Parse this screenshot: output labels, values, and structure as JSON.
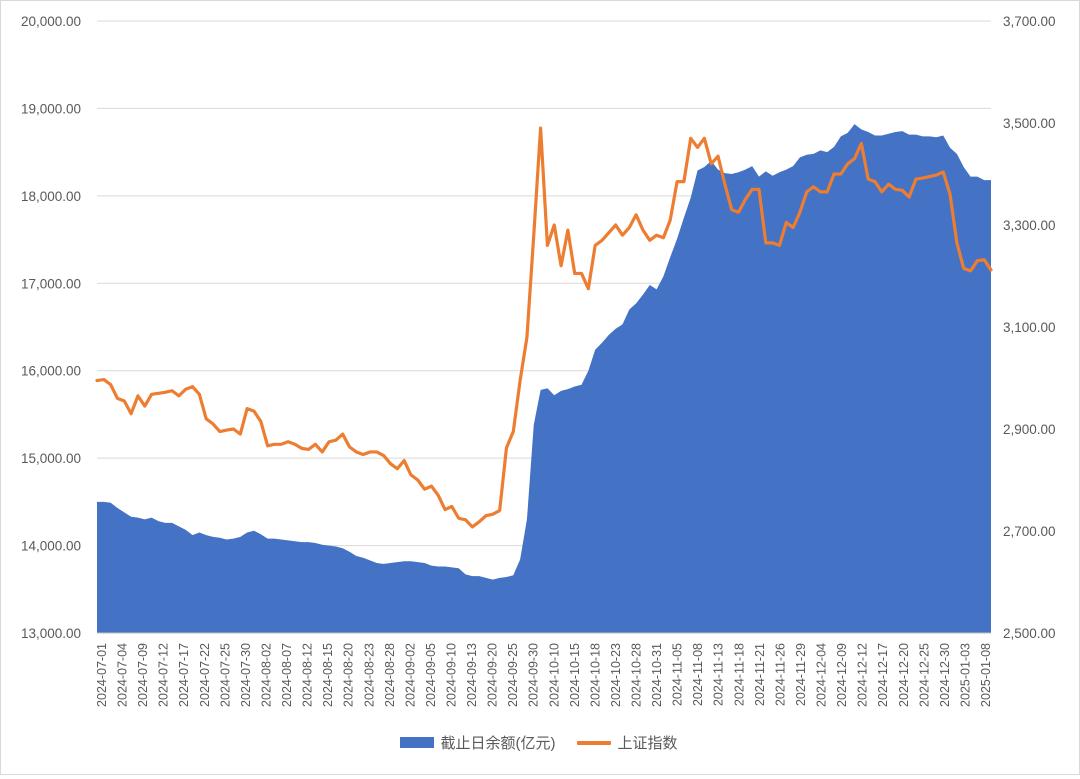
{
  "chart_data": {
    "type": "area+line",
    "left_axis": {
      "ticks": [
        "13,000.00",
        "14,000.00",
        "15,000.00",
        "16,000.00",
        "17,000.00",
        "18,000.00",
        "19,000.00",
        "20,000.00"
      ],
      "min": 13000,
      "max": 20000
    },
    "right_axis": {
      "ticks": [
        "2,500.00",
        "2,700.00",
        "2,900.00",
        "3,100.00",
        "3,300.00",
        "3,500.00",
        "3,700.00"
      ],
      "min": 2500,
      "max": 3700
    },
    "x_tick_labels": [
      "2024-07-01",
      "2024-07-04",
      "2024-07-09",
      "2024-07-12",
      "2024-07-17",
      "2024-07-22",
      "2024-07-25",
      "2024-07-30",
      "2024-08-02",
      "2024-08-07",
      "2024-08-12",
      "2024-08-15",
      "2024-08-20",
      "2024-08-23",
      "2024-08-28",
      "2024-09-02",
      "2024-09-05",
      "2024-09-10",
      "2024-09-13",
      "2024-09-20",
      "2024-09-25",
      "2024-09-30",
      "2024-10-10",
      "2024-10-15",
      "2024-10-18",
      "2024-10-23",
      "2024-10-28",
      "2024-10-31",
      "2024-11-05",
      "2024-11-08",
      "2024-11-13",
      "2024-11-18",
      "2024-11-21",
      "2024-11-26",
      "2024-11-29",
      "2024-12-04",
      "2024-12-09",
      "2024-12-12",
      "2024-12-17",
      "2024-12-20",
      "2024-12-25",
      "2024-12-30",
      "2025-01-03",
      "2025-01-08"
    ],
    "grid": "horizontal",
    "legend_position": "bottom",
    "series": [
      {
        "name": "截止日余额(亿元)",
        "type": "area",
        "axis": "left",
        "color": "#4472c4",
        "values": [
          14500,
          14500,
          14490,
          14430,
          14380,
          14330,
          14320,
          14300,
          14320,
          14280,
          14260,
          14260,
          14220,
          14180,
          14120,
          14150,
          14120,
          14100,
          14090,
          14070,
          14080,
          14100,
          14150,
          14170,
          14130,
          14080,
          14080,
          14070,
          14060,
          14050,
          14040,
          14040,
          14030,
          14010,
          14000,
          13990,
          13970,
          13930,
          13880,
          13860,
          13830,
          13800,
          13790,
          13800,
          13810,
          13820,
          13820,
          13810,
          13800,
          13770,
          13760,
          13760,
          13750,
          13740,
          13670,
          13650,
          13650,
          13630,
          13610,
          13630,
          13640,
          13660,
          13840,
          14300,
          15380,
          15780,
          15800,
          15720,
          15770,
          15790,
          15820,
          15840,
          16000,
          16240,
          16320,
          16410,
          16480,
          16530,
          16700,
          16770,
          16870,
          16980,
          16930,
          17080,
          17300,
          17510,
          17750,
          17980,
          18290,
          18330,
          18400,
          18300,
          18260,
          18250,
          18270,
          18300,
          18340,
          18220,
          18280,
          18230,
          18270,
          18300,
          18340,
          18440,
          18470,
          18480,
          18520,
          18500,
          18560,
          18680,
          18720,
          18820,
          18760,
          18730,
          18690,
          18690,
          18710,
          18730,
          18740,
          18700,
          18700,
          18680,
          18680,
          18670,
          18690,
          18550,
          18480,
          18330,
          18220,
          18220,
          18180,
          18180
        ]
      },
      {
        "name": "上证指数",
        "type": "line",
        "axis": "right",
        "color": "#ed7d31",
        "values": [
          2995,
          2997,
          2987,
          2960,
          2955,
          2930,
          2965,
          2945,
          2968,
          2970,
          2972,
          2975,
          2965,
          2978,
          2983,
          2968,
          2920,
          2910,
          2895,
          2898,
          2900,
          2890,
          2940,
          2935,
          2915,
          2867,
          2870,
          2870,
          2875,
          2870,
          2862,
          2860,
          2870,
          2855,
          2875,
          2878,
          2890,
          2865,
          2855,
          2850,
          2855,
          2855,
          2848,
          2832,
          2822,
          2838,
          2810,
          2800,
          2782,
          2788,
          2770,
          2742,
          2748,
          2725,
          2722,
          2708,
          2718,
          2730,
          2733,
          2740,
          2863,
          2895,
          2995,
          3080,
          3280,
          3490,
          3260,
          3300,
          3220,
          3290,
          3205,
          3205,
          3175,
          3260,
          3270,
          3285,
          3300,
          3280,
          3295,
          3320,
          3290,
          3270,
          3280,
          3275,
          3310,
          3385,
          3385,
          3470,
          3452,
          3470,
          3420,
          3435,
          3380,
          3330,
          3325,
          3350,
          3370,
          3370,
          3265,
          3265,
          3260,
          3305,
          3295,
          3325,
          3365,
          3375,
          3365,
          3365,
          3400,
          3400,
          3420,
          3430,
          3460,
          3390,
          3385,
          3365,
          3380,
          3370,
          3368,
          3355,
          3390,
          3392,
          3395,
          3398,
          3404,
          3360,
          3265,
          3215,
          3210,
          3230,
          3232,
          3212
        ]
      }
    ]
  }
}
